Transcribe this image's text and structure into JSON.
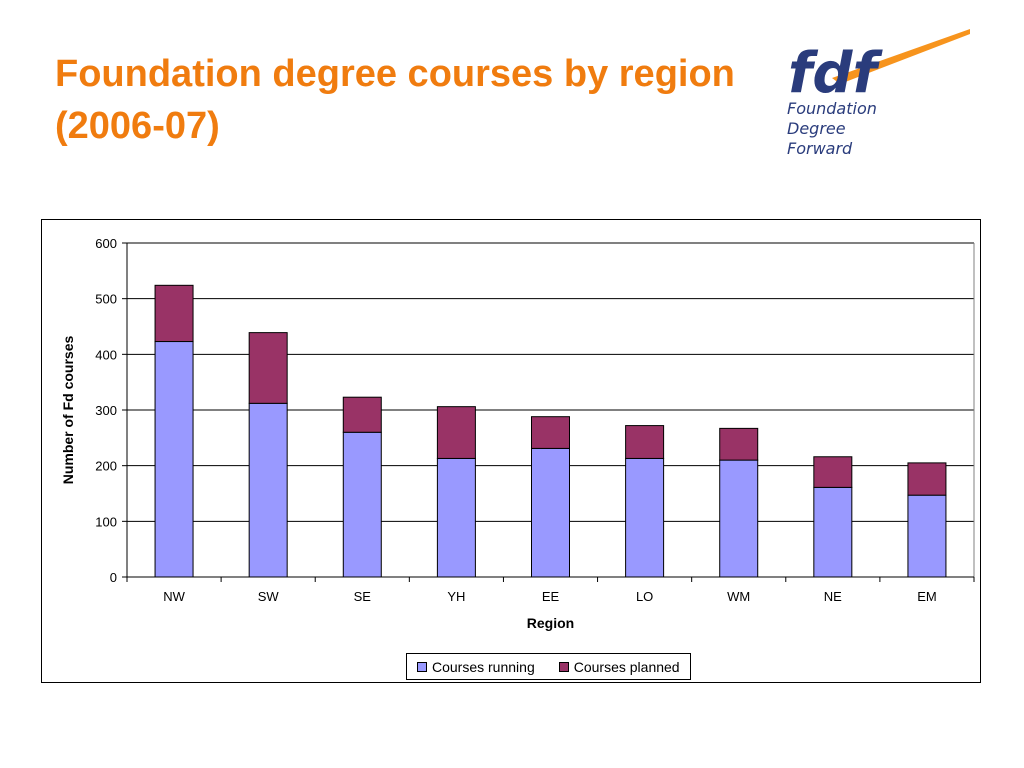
{
  "slide": {
    "title": "Foundation degree courses by region (2006-07)"
  },
  "logo": {
    "mark": "fdf",
    "lines": [
      "Foundation",
      "Degree",
      "Forward"
    ]
  },
  "colors": {
    "title": "#f07c0f",
    "running": "#9999ff",
    "planned": "#993366",
    "logo_blue": "#2a3c7c",
    "logo_orange": "#f7941d"
  },
  "chart_data": {
    "type": "bar",
    "stacked": true,
    "categories": [
      "NW",
      "SW",
      "SE",
      "YH",
      "EE",
      "LO",
      "WM",
      "NE",
      "EM"
    ],
    "series": [
      {
        "name": "Courses running",
        "values": [
          423,
          312,
          260,
          213,
          231,
          213,
          210,
          161,
          147
        ]
      },
      {
        "name": "Courses planned",
        "values": [
          101,
          127,
          63,
          93,
          57,
          59,
          57,
          55,
          58
        ]
      }
    ],
    "xlabel": "Region",
    "ylabel": "Number of Fd courses",
    "ylim": [
      0,
      600
    ],
    "yticks": [
      0,
      100,
      200,
      300,
      400,
      500,
      600
    ],
    "grid": true,
    "legend": "bottom"
  }
}
